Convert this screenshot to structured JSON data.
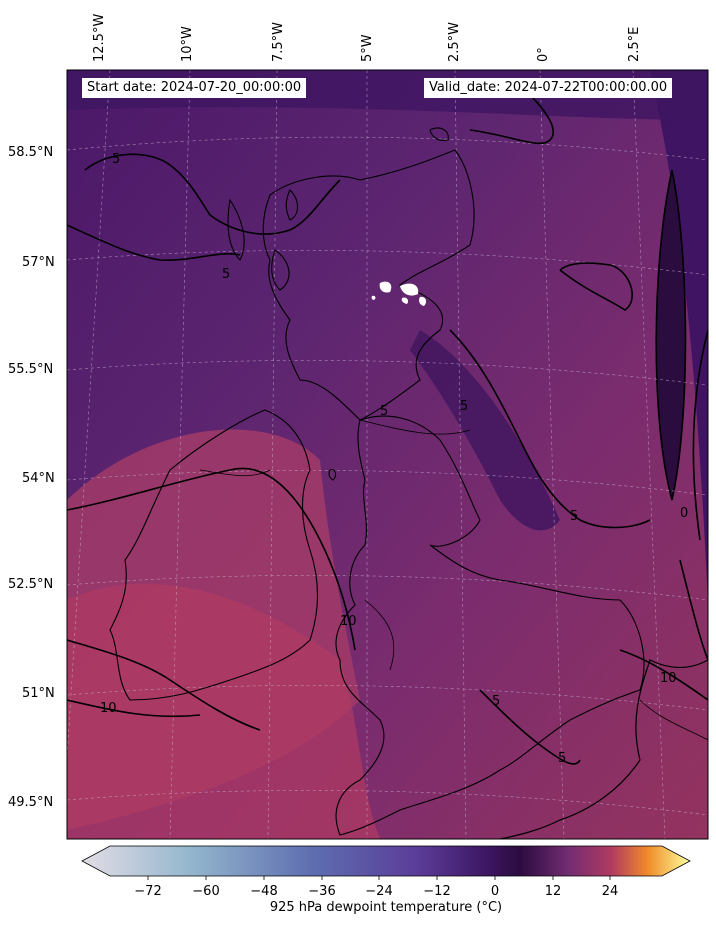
{
  "header": {
    "start_date": "Start date: 2024-07-20_00:00:00",
    "valid_date": "Valid_date: 2024-07-22T00:00:00.00"
  },
  "longitude_labels": [
    "12.5°W",
    "10°W",
    "7.5°W",
    "5°W",
    "2.5°W",
    "0°",
    "2.5°E"
  ],
  "latitude_labels": [
    "58.5°N",
    "57°N",
    "55.5°N",
    "54°N",
    "52.5°N",
    "51°N",
    "49.5°N"
  ],
  "contour_labels": [
    "5",
    "5",
    "5",
    "5",
    "5",
    "0",
    "10",
    "10",
    "5",
    "10",
    "5"
  ],
  "colorbar": {
    "label": "925 hPa dewpoint temperature ($^\\circ$C)",
    "display_label": "925 hPa dewpoint temperature (°C)",
    "ticks": [
      "−72",
      "−60",
      "−48",
      "−36",
      "−24",
      "−12",
      "0",
      "12",
      "24"
    ],
    "range": [
      -80,
      32
    ],
    "colormap": "inferno-like with pale-blue low end",
    "colors": {
      "low": "#e3dde6",
      "light_blue": "#93b6cd",
      "blue": "#5e6db0",
      "violet": "#5b3d99",
      "deep_purple": "#3c1560",
      "zero": "#2b0c3f",
      "plum": "#722c72",
      "rose": "#b03a62",
      "orange": "#f08a2a",
      "yellow": "#ffff9b"
    }
  },
  "map_colors": {
    "north_sea_low": "#3d145e",
    "scotland": "#5d2570",
    "england": "#7b2c6e",
    "ireland_south": "#a23b69",
    "coast": "#000000"
  }
}
